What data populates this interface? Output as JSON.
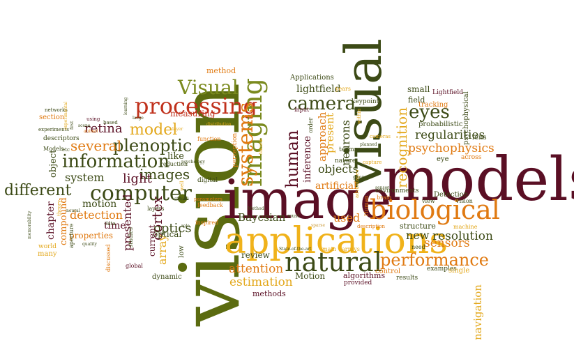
{
  "palette": {
    "olive": "#5b6b10",
    "dark_olive": "#3c4a16",
    "maroon": "#5a0f24",
    "red": "#c0311c",
    "orange": "#e07a12",
    "gold": "#e3a81c",
    "yellow": "#f0b21a",
    "tan": "#c99a3a",
    "green": "#7a8a1e"
  },
  "words": [
    {
      "text": "vision",
      "color": "#5b6b10"
    },
    {
      "text": "image",
      "color": "#5a0f24"
    },
    {
      "text": "models",
      "color": "#5a0f24"
    },
    {
      "text": "visual",
      "color": "#3c4a16"
    },
    {
      "text": "applications",
      "color": "#f0b21a"
    },
    {
      "text": "biological",
      "color": "#e07a12"
    },
    {
      "text": "natural",
      "color": "#3c4a16"
    },
    {
      "text": "processing",
      "color": "#c0311c"
    },
    {
      "text": "computer",
      "color": "#3c4a16"
    },
    {
      "text": "information",
      "color": "#3c4a16"
    },
    {
      "text": "imaging",
      "color": "#7a8a1e"
    },
    {
      "text": "systems",
      "color": "#e07a12"
    },
    {
      "text": "Visual",
      "color": "#7a8a1e"
    },
    {
      "text": "camera",
      "color": "#3c4a16"
    },
    {
      "text": "performance",
      "color": "#e07a12"
    },
    {
      "text": "plenoptic",
      "color": "#3c4a16"
    },
    {
      "text": "eyes",
      "color": "#3c4a16"
    },
    {
      "text": "human",
      "color": "#5a0f24"
    },
    {
      "text": "different",
      "color": "#3c4a16"
    },
    {
      "text": "recognition",
      "color": "#e3a81c"
    },
    {
      "text": "model",
      "color": "#e3a81c"
    },
    {
      "text": "several",
      "color": "#e07a12"
    },
    {
      "text": "retina",
      "color": "#5a0f24"
    },
    {
      "text": "images",
      "color": "#3c4a16"
    },
    {
      "text": "light",
      "color": "#5a0f24"
    },
    {
      "text": "cortex",
      "color": "#5a0f24"
    },
    {
      "text": "psychophysics",
      "color": "#e07a12"
    },
    {
      "text": "regularities",
      "color": "#3c4a16"
    },
    {
      "text": "resolution",
      "color": "#3c4a16"
    },
    {
      "text": "sensors",
      "color": "#e07a12"
    },
    {
      "text": "estimation",
      "color": "#e3a81c"
    },
    {
      "text": "attention",
      "color": "#e07a12"
    },
    {
      "text": "Bayesian",
      "color": "#3c4a16"
    },
    {
      "text": "navigation",
      "color": "#e3a81c"
    },
    {
      "text": "objects",
      "color": "#3c4a16"
    },
    {
      "text": "system",
      "color": "#3c4a16"
    },
    {
      "text": "detection",
      "color": "#e07a12"
    },
    {
      "text": "motion",
      "color": "#3c4a16"
    },
    {
      "text": "optics",
      "color": "#3c4a16"
    },
    {
      "text": "presented",
      "color": "#5a0f24"
    },
    {
      "text": "array",
      "color": "#e3a81c"
    },
    {
      "text": "new",
      "color": "#3c4a16"
    },
    {
      "text": "used",
      "color": "#e07a12"
    },
    {
      "text": "neurons",
      "color": "#3c4a16"
    },
    {
      "text": "inference",
      "color": "#5a0f24"
    },
    {
      "text": "approach",
      "color": "#e07a12"
    },
    {
      "text": "present",
      "color": "#e3a81c"
    },
    {
      "text": "artificial",
      "color": "#e07a12"
    },
    {
      "text": "lightfield",
      "color": "#3c4a16"
    },
    {
      "text": "time",
      "color": "#5a0f24"
    },
    {
      "text": "properties",
      "color": "#e07a12"
    },
    {
      "text": "chapter",
      "color": "#5a0f24"
    },
    {
      "text": "compound",
      "color": "#e07a12"
    },
    {
      "text": "object",
      "color": "#3c4a16"
    },
    {
      "text": "review",
      "color": "#3c4a16"
    },
    {
      "text": "Motion",
      "color": "#3c4a16"
    },
    {
      "text": "algorithms",
      "color": "#5a0f24"
    },
    {
      "text": "methods",
      "color": "#5a0f24"
    },
    {
      "text": "structure",
      "color": "#3c4a16"
    },
    {
      "text": "optical",
      "color": "#3c4a16"
    },
    {
      "text": "current",
      "color": "#5a0f24"
    },
    {
      "text": "like",
      "color": "#3c4a16"
    },
    {
      "text": "method",
      "color": "#e07a12"
    },
    {
      "text": "measuring",
      "color": "#c0311c"
    },
    {
      "text": "Applications",
      "color": "#3c4a16"
    },
    {
      "text": "small",
      "color": "#3c4a16"
    },
    {
      "text": "field",
      "color": "#3c4a16"
    },
    {
      "text": "tracking",
      "color": "#e07a12"
    },
    {
      "text": "probabilistic",
      "color": "#3c4a16"
    },
    {
      "text": "psychophysical",
      "color": "#3c4a16"
    },
    {
      "text": "Lightfield",
      "color": "#5a0f24"
    },
    {
      "text": "lens",
      "color": "#3c4a16"
    },
    {
      "text": "eye",
      "color": "#3c4a16"
    },
    {
      "text": "across",
      "color": "#e07a12"
    },
    {
      "text": "Detection",
      "color": "#3c4a16"
    },
    {
      "text": "view",
      "color": "#3c4a16"
    },
    {
      "text": "Vision",
      "color": "#3c4a16"
    },
    {
      "text": "examples",
      "color": "#3c4a16"
    },
    {
      "text": "single",
      "color": "#e3a81c"
    },
    {
      "text": "results",
      "color": "#3c4a16"
    },
    {
      "text": "provided",
      "color": "#5a0f24"
    },
    {
      "text": "control",
      "color": "#e07a12"
    },
    {
      "text": "need",
      "color": "#3c4a16"
    },
    {
      "text": "main",
      "color": "#e3a81c"
    },
    {
      "text": "arrays",
      "color": "#e3a81c"
    },
    {
      "text": "State-of-the-art",
      "color": "#3c4a16"
    },
    {
      "text": "environments",
      "color": "#3c4a16"
    },
    {
      "text": "brain",
      "color": "#e07a12"
    },
    {
      "text": "sensor",
      "color": "#3c4a16"
    },
    {
      "text": "machine",
      "color": "#e3a81c"
    },
    {
      "text": "Human",
      "color": "#e07a12"
    },
    {
      "text": "description",
      "color": "#e07a12"
    },
    {
      "text": "sparse",
      "color": "#c99a3a"
    },
    {
      "text": "advantages",
      "color": "#e3a81c"
    },
    {
      "text": "planned",
      "color": "#3c4a16"
    },
    {
      "text": "cameras",
      "color": "#e3a81c"
    },
    {
      "text": "capture",
      "color": "#e3a81c"
    },
    {
      "text": "nature",
      "color": "#3c4a16"
    },
    {
      "text": "terms",
      "color": "#3c4a16"
    },
    {
      "text": "givens",
      "color": "#3c4a16"
    },
    {
      "text": "order",
      "color": "#3c4a16"
    },
    {
      "text": "within",
      "color": "#e3a81c"
    },
    {
      "text": "keypoint",
      "color": "#3c4a16"
    },
    {
      "text": "years",
      "color": "#e3a81c"
    },
    {
      "text": "input",
      "color": "#5a0f24"
    },
    {
      "text": "must",
      "color": "#3c4a16"
    },
    {
      "text": "Method",
      "color": "#3c4a16"
    },
    {
      "text": "perception",
      "color": "#e07a12"
    },
    {
      "text": "Natural",
      "color": "#e3a81c"
    },
    {
      "text": "psychology",
      "color": "#3c4a16"
    },
    {
      "text": "digital",
      "color": "#3c4a16"
    },
    {
      "text": "function",
      "color": "#e07a12"
    },
    {
      "text": "reduction",
      "color": "#3c4a16"
    },
    {
      "text": "layer",
      "color": "#e3a81c"
    },
    {
      "text": "well",
      "color": "#e3a81c"
    },
    {
      "text": "stimuli",
      "color": "#3c4a16"
    },
    {
      "text": "layers",
      "color": "#3c4a16"
    },
    {
      "text": "feedback",
      "color": "#e07a12"
    },
    {
      "text": "inspired",
      "color": "#e07a12"
    },
    {
      "text": "parameters",
      "color": "#e07a12"
    },
    {
      "text": "role",
      "color": "#3c4a16"
    },
    {
      "text": "low",
      "color": "#3c4a16"
    },
    {
      "text": "dynamic",
      "color": "#3c4a16"
    },
    {
      "text": "global",
      "color": "#5a0f24"
    },
    {
      "text": "studies",
      "color": "#3c4a16"
    },
    {
      "text": "data",
      "color": "#3c4a16"
    },
    {
      "text": "quality",
      "color": "#3c4a16"
    },
    {
      "text": "discussed",
      "color": "#e07a12"
    },
    {
      "text": "aperture",
      "color": "#3c4a16"
    },
    {
      "text": "neural",
      "color": "#3c4a16"
    },
    {
      "text": "theory",
      "color": "#e3a81c"
    },
    {
      "text": "world",
      "color": "#e3a81c"
    },
    {
      "text": "many",
      "color": "#e3a81c"
    },
    {
      "text": "memorability",
      "color": "#3c4a16"
    },
    {
      "text": "Models",
      "color": "#3c4a16"
    },
    {
      "text": "etc",
      "color": "#3c4a16"
    },
    {
      "text": "descriptors",
      "color": "#3c4a16"
    },
    {
      "text": "experiments",
      "color": "#3c4a16"
    },
    {
      "text": "section",
      "color": "#e07a12"
    },
    {
      "text": "networks",
      "color": "#3c4a16"
    },
    {
      "text": "experimental",
      "color": "#e3a81c"
    },
    {
      "text": "first",
      "color": "#3c4a16"
    },
    {
      "text": "using",
      "color": "#5a0f24"
    },
    {
      "text": "animal",
      "color": "#e07a12"
    },
    {
      "text": "scene",
      "color": "#3c4a16"
    },
    {
      "text": "based",
      "color": "#3c4a16"
    },
    {
      "text": "learning",
      "color": "#3c4a16"
    },
    {
      "text": "large",
      "color": "#3c4a16"
    },
    {
      "text": "distribution",
      "color": "#e3a81c"
    }
  ]
}
